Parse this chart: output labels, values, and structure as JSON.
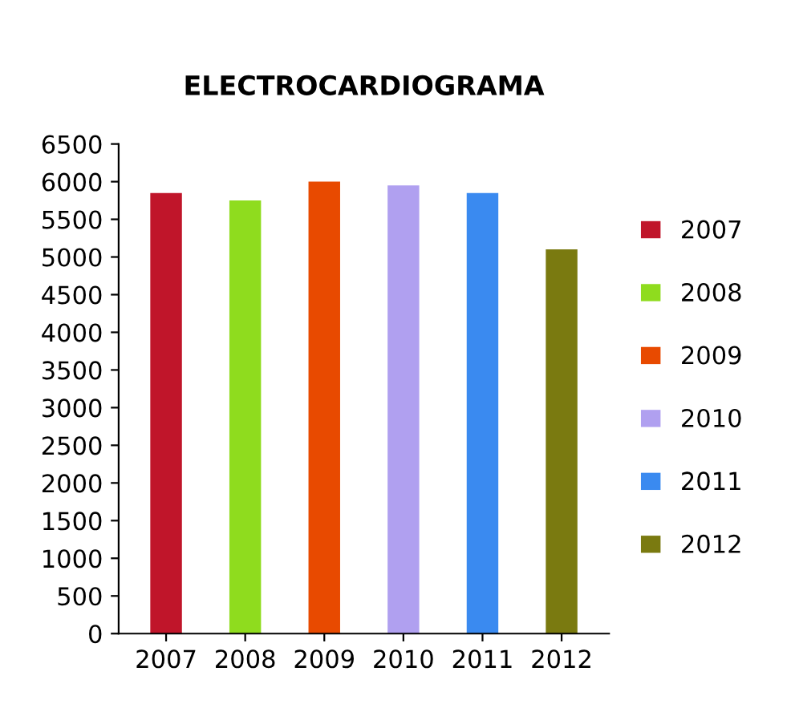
{
  "chart_data": {
    "type": "bar",
    "title": "ELECTROCARDIOGRAMA",
    "categories": [
      "2007",
      "2008",
      "2009",
      "2010",
      "2011",
      "2012"
    ],
    "series": [
      {
        "name": "2007",
        "color": "#c0152a",
        "values": [
          5850,
          null,
          null,
          null,
          null,
          null
        ]
      },
      {
        "name": "2008",
        "color": "#8fdc1e",
        "values": [
          null,
          5750,
          null,
          null,
          null,
          null
        ]
      },
      {
        "name": "2009",
        "color": "#e84a00",
        "values": [
          null,
          null,
          6000,
          null,
          null,
          null
        ]
      },
      {
        "name": "2010",
        "color": "#b0a0f0",
        "values": [
          null,
          null,
          null,
          5950,
          null,
          null
        ]
      },
      {
        "name": "2011",
        "color": "#3a8af0",
        "values": [
          null,
          null,
          null,
          null,
          5850,
          null
        ]
      },
      {
        "name": "2012",
        "color": "#7a7a10",
        "values": [
          null,
          null,
          null,
          null,
          null,
          5100
        ]
      }
    ],
    "ylim": [
      0,
      6500
    ],
    "yticks": [
      0,
      500,
      1000,
      1500,
      2000,
      2500,
      3000,
      3500,
      4000,
      4500,
      5000,
      5500,
      6000,
      6500
    ],
    "grid": false,
    "legend": "right"
  }
}
